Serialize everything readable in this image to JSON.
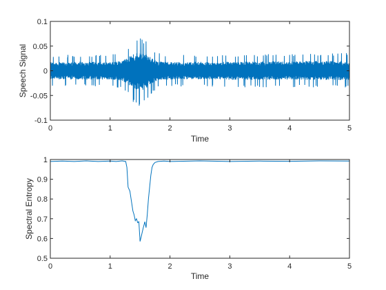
{
  "figure": {
    "background": "#ffffff",
    "line_color": "#0072BD",
    "axis_color": "#262626"
  },
  "chart_data": [
    {
      "type": "line",
      "title": "",
      "xlabel": "Time",
      "ylabel": "Speech Signal",
      "xlim": [
        0,
        5
      ],
      "ylim": [
        -0.1,
        0.1
      ],
      "xticks": [
        0,
        1,
        2,
        3,
        4,
        5
      ],
      "xtick_labels": [
        "0",
        "1",
        "2",
        "3",
        "4",
        "5"
      ],
      "yticks": [
        -0.1,
        -0.05,
        0,
        0.05,
        0.1
      ],
      "ytick_labels": [
        "-0.1",
        "-0.05",
        "0",
        "0.05",
        "0.1"
      ],
      "grid": false,
      "series": [
        {
          "style": "noise-envelope",
          "x": [
            0,
            0.5,
            1.0,
            1.2,
            1.3,
            1.4,
            1.5,
            1.6,
            1.7,
            1.8,
            2.0,
            2.5,
            3.0,
            3.5,
            4.0,
            4.5,
            5.0
          ],
          "upper": [
            0.031,
            0.033,
            0.033,
            0.036,
            0.05,
            0.062,
            0.068,
            0.062,
            0.045,
            0.036,
            0.032,
            0.033,
            0.033,
            0.034,
            0.035,
            0.036,
            0.036
          ],
          "lower": [
            -0.031,
            -0.032,
            -0.033,
            -0.036,
            -0.05,
            -0.065,
            -0.078,
            -0.064,
            -0.046,
            -0.035,
            -0.032,
            -0.032,
            -0.033,
            -0.034,
            -0.033,
            -0.034,
            -0.034
          ]
        }
      ]
    },
    {
      "type": "line",
      "title": "",
      "xlabel": "Time",
      "ylabel": "Spectral Entropy",
      "xlim": [
        0,
        5
      ],
      "ylim": [
        0.5,
        1
      ],
      "xticks": [
        0,
        1,
        2,
        3,
        4,
        5
      ],
      "xtick_labels": [
        "0",
        "1",
        "2",
        "3",
        "4",
        "5"
      ],
      "yticks": [
        0.5,
        0.6,
        0.7,
        0.8,
        0.9,
        1
      ],
      "ytick_labels": [
        "0.5",
        "0.6",
        "0.7",
        "0.8",
        "0.9",
        "1"
      ],
      "grid": false,
      "series": [
        {
          "x": [
            0,
            0.2,
            0.4,
            0.6,
            0.8,
            1.0,
            1.1,
            1.2,
            1.26,
            1.28,
            1.3,
            1.33,
            1.36,
            1.38,
            1.4,
            1.42,
            1.44,
            1.46,
            1.48,
            1.5,
            1.52,
            1.55,
            1.58,
            1.6,
            1.62,
            1.64,
            1.66,
            1.68,
            1.7,
            1.72,
            1.75,
            1.8,
            1.9,
            2.0,
            2.5,
            3.0,
            3.5,
            4.0,
            4.5,
            5.0
          ],
          "y": [
            0.99,
            0.992,
            0.99,
            0.993,
            0.99,
            0.992,
            0.99,
            0.993,
            0.99,
            0.96,
            0.86,
            0.84,
            0.78,
            0.74,
            0.72,
            0.69,
            0.7,
            0.68,
            0.685,
            0.585,
            0.61,
            0.65,
            0.685,
            0.655,
            0.72,
            0.8,
            0.86,
            0.92,
            0.96,
            0.975,
            0.985,
            0.99,
            0.992,
            0.99,
            0.993,
            0.99,
            0.992,
            0.991,
            0.993,
            0.992
          ]
        }
      ]
    }
  ]
}
